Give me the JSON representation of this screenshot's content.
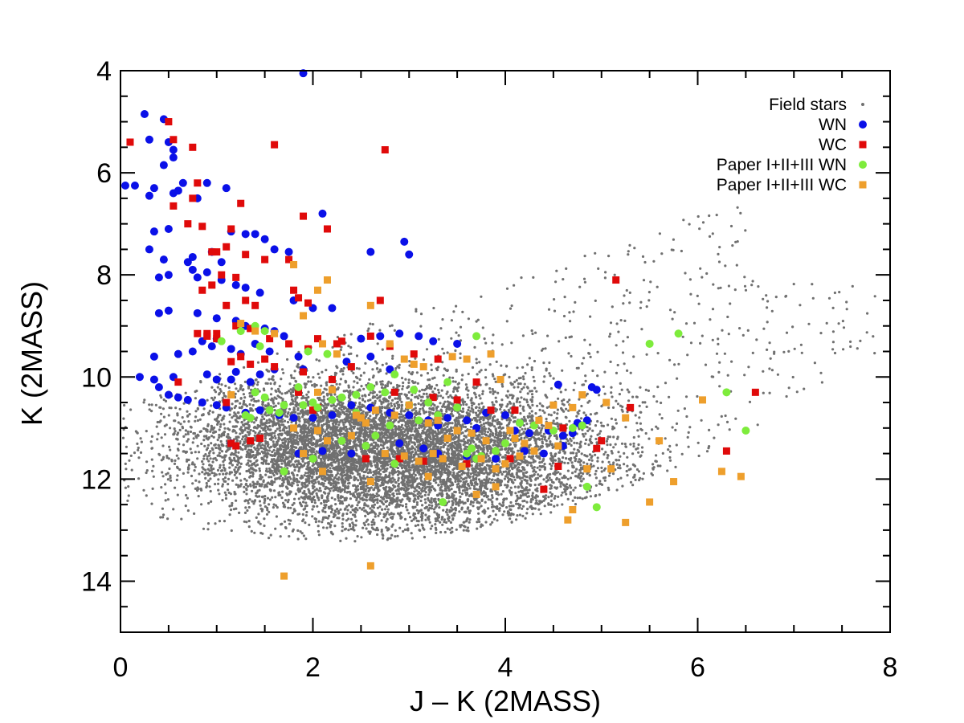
{
  "chart_data": {
    "type": "scatter",
    "title": "",
    "xlabel": "J – K (2MASS)",
    "ylabel": "K (2MASS)",
    "xlim": [
      0,
      8
    ],
    "ylim": [
      15,
      4
    ],
    "y_inverted": true,
    "x_ticks": [
      0,
      2,
      4,
      6,
      8
    ],
    "y_ticks": [
      4,
      6,
      8,
      10,
      12,
      14
    ],
    "x_tick_labels": [
      "0",
      "2",
      "4",
      "6",
      "8"
    ],
    "y_tick_labels": [
      "4",
      "6",
      "8",
      "10",
      "12",
      "14"
    ],
    "grid": false,
    "legend_position": "top-right",
    "field_stars_note": "Thousands of gray field-star points; dense core near J-K 2.5-4.5, K 10.5-12.5; approximated by a seeded density model.",
    "series": [
      {
        "name": "Field stars",
        "marker": "dot",
        "color": "#707070",
        "generated": true,
        "count": 9000
      },
      {
        "name": "WN",
        "marker": "circle",
        "color": "#0a10e8",
        "x": [
          1.9,
          0.25,
          0.45,
          0.5,
          0.3,
          0.55,
          0.55,
          0.45,
          0.15,
          0.05,
          0.35,
          0.3,
          0.55,
          0.65,
          0.6,
          0.9,
          1.1,
          0.8,
          0.35,
          0.5,
          1.15,
          1.3,
          1.4,
          1.5,
          1.6,
          1.75,
          2.1,
          0.3,
          0.45,
          0.7,
          0.75,
          0.95,
          1.05,
          0.4,
          0.5,
          0.75,
          0.8,
          0.9,
          1.05,
          1.2,
          1.3,
          1.45,
          1.8,
          2.0,
          2.95,
          3.0,
          2.6,
          0.4,
          0.5,
          0.8,
          1.0,
          1.2,
          1.3,
          1.5,
          1.6,
          1.7,
          2.2,
          0.35,
          0.6,
          0.75,
          0.95,
          1.15,
          1.25,
          1.4,
          1.55,
          1.85,
          1.9,
          0.35,
          0.55,
          0.9,
          1.0,
          1.15,
          1.2,
          1.35,
          1.45,
          1.6,
          0.2,
          0.4,
          0.5,
          0.6,
          0.7,
          0.85,
          1.0,
          1.1,
          1.3,
          1.45,
          1.65,
          1.8,
          2.0,
          2.2,
          2.4,
          2.6,
          2.8,
          3.0,
          3.2,
          3.3,
          3.7,
          4.1,
          4.25,
          4.45,
          4.6,
          4.7,
          4.9,
          4.95,
          3.4,
          3.6,
          3.8,
          4.0,
          4.15,
          4.55,
          4.75,
          4.8,
          4.85,
          2.5,
          2.7,
          2.9,
          3.1,
          3.25,
          3.5,
          2.35,
          2.6,
          2.8,
          1.15,
          1.85,
          2.1,
          2.4,
          2.9,
          3.15,
          3.3,
          3.6,
          3.9,
          4.2,
          4.4,
          4.6,
          0.85,
          1.0
        ],
        "y": [
          4.05,
          4.85,
          4.95,
          5.4,
          5.35,
          5.55,
          5.7,
          5.85,
          6.25,
          6.25,
          6.3,
          6.45,
          6.4,
          6.2,
          6.35,
          6.2,
          6.3,
          6.5,
          7.15,
          7.1,
          7.15,
          7.2,
          7.2,
          7.3,
          7.5,
          7.55,
          6.8,
          7.5,
          7.7,
          7.75,
          7.65,
          7.55,
          7.75,
          8.05,
          8.0,
          7.9,
          8.05,
          7.95,
          8.1,
          8.2,
          8.25,
          8.35,
          8.5,
          8.65,
          7.35,
          7.6,
          7.55,
          8.75,
          8.7,
          8.75,
          8.85,
          8.9,
          9.0,
          9.05,
          9.1,
          9.2,
          8.65,
          9.6,
          9.55,
          9.5,
          9.4,
          9.45,
          9.55,
          9.35,
          9.5,
          9.6,
          9.85,
          10.05,
          10.0,
          9.95,
          10.05,
          10.05,
          9.9,
          10.1,
          9.95,
          9.85,
          10.0,
          10.2,
          10.35,
          10.4,
          10.45,
          10.5,
          10.55,
          10.6,
          10.7,
          10.65,
          10.75,
          10.8,
          10.8,
          10.75,
          10.55,
          10.6,
          10.7,
          10.75,
          10.85,
          10.95,
          11.0,
          11.05,
          11.1,
          11.05,
          11.15,
          11.1,
          10.2,
          10.25,
          10.8,
          10.85,
          10.7,
          10.75,
          10.9,
          10.15,
          10.9,
          10.95,
          10.85,
          9.25,
          9.2,
          9.15,
          9.2,
          9.3,
          9.35,
          9.7,
          9.6,
          9.85,
          11.3,
          11.5,
          11.45,
          11.5,
          11.3,
          11.4,
          11.5,
          11.55,
          11.6,
          11.45,
          11.5,
          11.35,
          9.3,
          9.25
        ]
      },
      {
        "name": "WC",
        "marker": "square",
        "color": "#e00a0a",
        "x": [
          0.1,
          0.5,
          0.55,
          0.75,
          1.6,
          0.8,
          0.55,
          0.75,
          1.25,
          1.15,
          2.15,
          1.9,
          0.7,
          0.85,
          0.95,
          1.0,
          1.1,
          1.3,
          1.5,
          1.75,
          1.05,
          1.2,
          0.95,
          0.85,
          1.3,
          1.4,
          1.8,
          1.85,
          1.95,
          1.1,
          1.2,
          1.35,
          1.55,
          1.75,
          1.95,
          1.25,
          1.5,
          2.05,
          2.25,
          2.75,
          2.7,
          5.15,
          0.8,
          0.9,
          1.0,
          1.15,
          1.35,
          1.6,
          1.9,
          2.4,
          2.2,
          3.25,
          0.6,
          1.1,
          1.85,
          2.0,
          2.05,
          2.85,
          3.5,
          3.85,
          4.1,
          4.6,
          5.0,
          5.3,
          6.3,
          6.6,
          2.55,
          2.9,
          3.15,
          3.6,
          4.05,
          4.4,
          4.55,
          4.95,
          1.15,
          1.2,
          1.35,
          1.45,
          0.9,
          1.0,
          2.3,
          2.6,
          2.8,
          3.05,
          3.3,
          3.7
        ],
        "y": [
          5.4,
          5.0,
          5.35,
          5.5,
          5.45,
          6.2,
          6.65,
          6.5,
          6.6,
          7.1,
          7.1,
          6.85,
          7.0,
          7.05,
          7.55,
          7.55,
          7.45,
          7.6,
          7.7,
          7.7,
          8.0,
          8.05,
          8.2,
          8.3,
          8.5,
          8.6,
          8.3,
          8.45,
          8.55,
          8.6,
          9.0,
          9.05,
          9.25,
          9.35,
          9.45,
          9.6,
          9.65,
          9.25,
          9.35,
          5.55,
          8.5,
          8.1,
          9.15,
          9.2,
          9.15,
          9.7,
          9.75,
          9.8,
          9.9,
          9.8,
          10.05,
          10.4,
          10.1,
          10.5,
          10.3,
          10.65,
          10.6,
          10.3,
          10.45,
          10.65,
          10.65,
          11.0,
          11.25,
          10.6,
          11.45,
          10.3,
          11.6,
          11.6,
          11.65,
          11.7,
          11.6,
          12.2,
          11.75,
          11.4,
          11.3,
          11.35,
          11.25,
          11.2,
          9.15,
          9.25,
          9.3,
          9.2,
          9.4,
          9.55,
          9.65,
          10.1
        ]
      },
      {
        "name": "Paper I+II+III WN",
        "marker": "circle",
        "color": "#7eec3c",
        "x": [
          1.05,
          1.25,
          1.4,
          1.5,
          1.45,
          1.4,
          1.7,
          1.3,
          1.55,
          1.65,
          1.9,
          2.0,
          2.05,
          2.2,
          2.3,
          2.45,
          2.6,
          2.75,
          2.85,
          3.0,
          3.05,
          3.2,
          3.4,
          3.5,
          3.65,
          3.7,
          3.75,
          3.9,
          4.0,
          4.15,
          4.3,
          4.5,
          4.7,
          4.85,
          4.95,
          5.5,
          5.8,
          6.3,
          6.5,
          1.7,
          2.0,
          2.3,
          2.55,
          2.85,
          3.35,
          3.6,
          4.8,
          1.95,
          2.15,
          2.45,
          2.65,
          2.8,
          3.1,
          3.3,
          3.7,
          1.35,
          1.5,
          1.85
        ],
        "y": [
          9.3,
          9.1,
          9.0,
          9.1,
          9.4,
          10.3,
          10.55,
          10.75,
          10.65,
          10.7,
          10.55,
          10.5,
          10.6,
          10.45,
          10.4,
          10.35,
          10.2,
          10.3,
          9.95,
          10.55,
          10.25,
          10.5,
          10.1,
          10.6,
          11.4,
          11.6,
          11.55,
          11.45,
          11.3,
          10.9,
          10.95,
          11.05,
          11.0,
          12.15,
          12.55,
          9.35,
          9.15,
          10.3,
          11.05,
          11.85,
          11.6,
          11.25,
          11.35,
          11.7,
          12.45,
          11.5,
          10.95,
          9.5,
          9.55,
          10.7,
          11.15,
          10.95,
          10.85,
          10.75,
          9.2,
          10.8,
          10.4,
          10.2
        ]
      },
      {
        "name": "Paper I+II+III WC",
        "marker": "square",
        "color": "#ee9f2c",
        "x": [
          1.8,
          2.05,
          2.15,
          2.6,
          1.25,
          1.4,
          1.6,
          1.9,
          2.1,
          2.25,
          2.8,
          2.95,
          3.05,
          3.15,
          3.45,
          3.6,
          3.85,
          3.95,
          1.15,
          2.05,
          2.2,
          2.45,
          2.5,
          2.55,
          2.65,
          2.85,
          3.0,
          3.2,
          3.3,
          3.4,
          3.5,
          3.65,
          3.8,
          4.05,
          4.1,
          4.2,
          4.35,
          4.45,
          4.5,
          4.7,
          4.8,
          5.05,
          5.25,
          1.8,
          2.05,
          2.15,
          2.4,
          2.75,
          2.95,
          3.1,
          3.25,
          3.35,
          3.55,
          3.75,
          3.9,
          4.0,
          4.15,
          4.3,
          4.55,
          4.85,
          5.1,
          5.6,
          5.75,
          6.05,
          6.25,
          6.45,
          1.9,
          2.1,
          2.6,
          3.2,
          3.7,
          3.9,
          4.65,
          5.5,
          1.7,
          2.6,
          4.7,
          5.25
        ],
        "y": [
          7.8,
          8.3,
          8.1,
          8.6,
          8.95,
          9.1,
          9.15,
          8.8,
          9.35,
          9.55,
          9.35,
          9.65,
          9.75,
          9.8,
          9.6,
          9.65,
          9.55,
          10.05,
          10.35,
          10.3,
          10.25,
          10.75,
          10.8,
          10.9,
          10.65,
          10.75,
          10.55,
          10.9,
          10.85,
          11.2,
          11.05,
          11.1,
          11.25,
          11.05,
          11.2,
          11.3,
          10.85,
          10.95,
          10.55,
          10.6,
          10.35,
          10.5,
          10.8,
          11.0,
          11.05,
          11.25,
          11.15,
          11.5,
          11.55,
          11.65,
          11.5,
          11.6,
          11.75,
          11.6,
          11.8,
          11.7,
          11.55,
          11.45,
          11.35,
          11.8,
          11.8,
          11.25,
          12.05,
          10.45,
          11.85,
          11.95,
          11.5,
          11.85,
          12.05,
          11.95,
          12.3,
          12.15,
          12.8,
          12.45,
          13.9,
          13.7,
          12.6,
          12.85
        ]
      }
    ]
  }
}
